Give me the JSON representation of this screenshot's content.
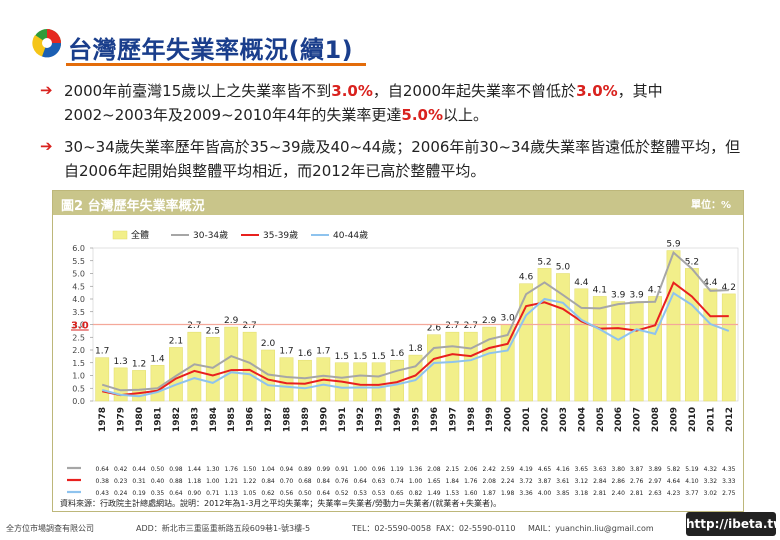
{
  "page": {
    "title": "台灣歷年失業率概況(續1)",
    "bullets": [
      {
        "parts": [
          {
            "t": "2000年前臺灣15歲以上之失業率皆不到",
            "h": false
          },
          {
            "t": "3.0%",
            "h": true
          },
          {
            "t": "，自2000年起失業率不曾低於",
            "h": false
          },
          {
            "t": "3.0%",
            "h": true
          },
          {
            "t": "，其中2002~2003年及2009~2010年4年的失業率更達",
            "h": false
          },
          {
            "t": "5.0%",
            "h": true
          },
          {
            "t": "以上。",
            "h": false
          }
        ]
      },
      {
        "parts": [
          {
            "t": "30~34歲失業率歷年皆高於35~39歲及40~44歲；2006年前30~34歲失業率皆遠低於整體平均，但自2006年起開始與整體平均相近，而2012年已高於整體平均。",
            "h": false
          }
        ]
      }
    ],
    "bullet_glyph": "➔",
    "chart_box_title": "圖2 台灣歷年失業率概況",
    "chart_unit": "單位：%",
    "source": "資料來源：行政院主計總處網站。說明：2012年為1-3月之平均失業率；失業率=失業者/勞動力=失業者/(就業者+失業者)。",
    "footer": {
      "company": "全方位市場調查有限公司",
      "addr": "ADD：新北市三重區重新路五段609巷1-號3樓-5",
      "tel": "TEL：02-5590-0058",
      "fax": "FAX：02-5590-0110",
      "mail": "MAIL：yuanchin.liu@gmail.com",
      "brand": "http://ibeta.tw"
    }
  },
  "chart_data": {
    "type": "bar",
    "title": "圖2 台灣歷年失業率概況",
    "unit": "單位：%",
    "ylim": [
      0,
      6.0
    ],
    "yticks": [
      "0.0",
      "0.5",
      "1.0",
      "1.5",
      "2.0",
      "2.5",
      "3.0",
      "3.5",
      "4.0",
      "4.5",
      "5.0",
      "5.5",
      "6.0"
    ],
    "reference_line": {
      "value": 3.0,
      "label": "3.0"
    },
    "categories": [
      "1978",
      "1979",
      "1980",
      "1981",
      "1982",
      "1983",
      "1984",
      "1985",
      "1986",
      "1987",
      "1988",
      "1989",
      "1990",
      "1991",
      "1992",
      "1993",
      "1994",
      "1995",
      "1996",
      "1997",
      "1998",
      "1999",
      "2000",
      "2001",
      "2002",
      "2003",
      "2004",
      "2005",
      "2006",
      "2007",
      "2008",
      "2009",
      "2010",
      "2011",
      "2012"
    ],
    "series": [
      {
        "name": "全體",
        "kind": "bar",
        "color": "#f2ef8a",
        "values": [
          1.7,
          1.3,
          1.2,
          1.4,
          2.1,
          2.7,
          2.5,
          2.9,
          2.7,
          2.0,
          1.7,
          1.6,
          1.7,
          1.5,
          1.5,
          1.5,
          1.6,
          1.8,
          2.6,
          2.7,
          2.7,
          2.9,
          3.0,
          4.6,
          5.2,
          5.0,
          4.4,
          4.1,
          3.9,
          3.9,
          4.1,
          5.9,
          5.2,
          4.4,
          4.2
        ],
        "labels": [
          "1.7",
          "1.3",
          "1.2",
          "1.4",
          "2.1",
          "2.7",
          "2.5",
          "2.9",
          "2.7",
          "2.0",
          "1.7",
          "1.6",
          "1.7",
          "1.5",
          "1.5",
          "1.5",
          "1.6",
          "1.8",
          "2.6",
          "2.7",
          "2.7",
          "2.9",
          "3.0",
          "4.6",
          "5.2",
          "5.0",
          "4.4",
          "4.1",
          "3.9",
          "3.9",
          "4.1",
          "5.9",
          "5.2",
          "4.4",
          "4.2"
        ]
      },
      {
        "name": "30-34歲",
        "kind": "line",
        "color": "#a6a6a6",
        "values": [
          0.64,
          0.42,
          0.44,
          0.5,
          0.98,
          1.44,
          1.3,
          1.76,
          1.5,
          1.04,
          0.94,
          0.89,
          0.99,
          0.91,
          1.0,
          0.96,
          1.19,
          1.36,
          2.08,
          2.15,
          2.06,
          2.42,
          2.59,
          4.19,
          4.65,
          4.16,
          3.65,
          3.63,
          3.8,
          3.87,
          3.89,
          5.82,
          5.19,
          4.32,
          4.35
        ],
        "labels": [
          "0.64",
          "0.42",
          "0.44",
          "0.50",
          "0.98",
          "1.44",
          "1.30",
          "1.76",
          "1.50",
          "1.04",
          "0.94",
          "0.89",
          "0.99",
          "0.91",
          "1.00",
          "0.96",
          "1.19",
          "1.36",
          "2.08",
          "2.15",
          "2.06",
          "2.42",
          "2.59",
          "4.19",
          "4.65",
          "4.16",
          "3.65",
          "3.63",
          "3.80",
          "3.87",
          "3.89",
          "5.82",
          "5.19",
          "4.32",
          "4.35"
        ]
      },
      {
        "name": "35-39歲",
        "kind": "line",
        "color": "#e8201e",
        "values": [
          0.38,
          0.23,
          0.31,
          0.4,
          0.88,
          1.18,
          1.0,
          1.21,
          1.22,
          0.84,
          0.7,
          0.68,
          0.84,
          0.76,
          0.64,
          0.63,
          0.74,
          1.0,
          1.65,
          1.84,
          1.76,
          2.08,
          2.24,
          3.72,
          3.87,
          3.61,
          3.12,
          2.84,
          2.86,
          2.76,
          2.97,
          4.64,
          4.1,
          3.32,
          3.33
        ],
        "labels": [
          "0.38",
          "0.23",
          "0.31",
          "0.40",
          "0.88",
          "1.18",
          "1.00",
          "1.21",
          "1.22",
          "0.84",
          "0.70",
          "0.68",
          "0.84",
          "0.76",
          "0.64",
          "0.63",
          "0.74",
          "1.00",
          "1.65",
          "1.84",
          "1.76",
          "2.08",
          "2.24",
          "3.72",
          "3.87",
          "3.61",
          "3.12",
          "2.84",
          "2.86",
          "2.76",
          "2.97",
          "4.64",
          "4.10",
          "3.32",
          "3.33"
        ]
      },
      {
        "name": "40-44歲",
        "kind": "line",
        "color": "#8ec3ee",
        "values": [
          0.43,
          0.24,
          0.19,
          0.35,
          0.64,
          0.9,
          0.71,
          1.13,
          1.05,
          0.62,
          0.56,
          0.5,
          0.64,
          0.52,
          0.53,
          0.53,
          0.65,
          0.82,
          1.49,
          1.53,
          1.6,
          1.87,
          1.98,
          3.36,
          4.0,
          3.85,
          3.18,
          2.81,
          2.4,
          2.81,
          2.63,
          4.23,
          3.77,
          3.02,
          2.75
        ],
        "labels": [
          "0.43",
          "0.24",
          "0.19",
          "0.35",
          "0.64",
          "0.90",
          "0.71",
          "1.13",
          "1.05",
          "0.62",
          "0.56",
          "0.50",
          "0.64",
          "0.52",
          "0.53",
          "0.53",
          "0.65",
          "0.82",
          "1.49",
          "1.53",
          "1.60",
          "1.87",
          "1.98",
          "3.36",
          "4.00",
          "3.85",
          "3.18",
          "2.81",
          "2.40",
          "2.81",
          "2.63",
          "4.23",
          "3.77",
          "3.02",
          "2.75"
        ]
      }
    ],
    "legend_position": "top-left"
  }
}
